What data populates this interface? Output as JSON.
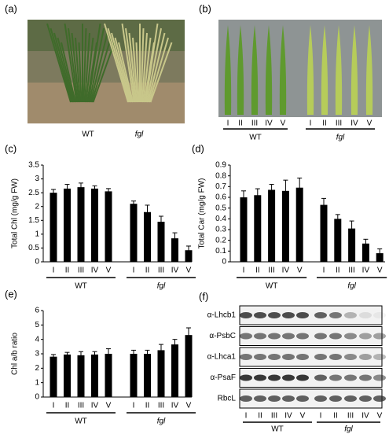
{
  "panels": {
    "a": {
      "label": "(a)",
      "captions": [
        "WT",
        "fgl"
      ]
    },
    "b": {
      "label": "(b)",
      "lanes": [
        "I",
        "II",
        "III",
        "IV",
        "V",
        "I",
        "II",
        "III",
        "IV",
        "V"
      ],
      "groups": [
        "WT",
        "fgl"
      ]
    },
    "f": {
      "label": "(f)",
      "rows": [
        "α-Lhcb1",
        "α-PsbC",
        "α-Lhca1",
        "α-PsaF",
        "RbcL"
      ],
      "lanes": [
        "I",
        "II",
        "III",
        "IV",
        "V",
        "I",
        "II",
        "III",
        "IV",
        "V"
      ],
      "groups": [
        "WT",
        "fgl"
      ]
    }
  },
  "chart_data": [
    {
      "type": "bar",
      "panel_label": "(c)",
      "ylabel": "Total Chl (mg/g FW)",
      "color": "#000000",
      "categories": [
        "I",
        "II",
        "III",
        "IV",
        "V"
      ],
      "groups": [
        {
          "name": "WT",
          "values": [
            2.5,
            2.65,
            2.7,
            2.65,
            2.55
          ],
          "errors": [
            0.12,
            0.15,
            0.15,
            0.1,
            0.1
          ]
        },
        {
          "name": "fgl",
          "values": [
            2.1,
            1.8,
            1.45,
            0.85,
            0.42
          ],
          "errors": [
            0.1,
            0.25,
            0.2,
            0.2,
            0.15
          ]
        }
      ],
      "ylim": [
        0,
        3.5
      ],
      "yticks": [
        0,
        0.5,
        1,
        1.5,
        2,
        2.5,
        3,
        3.5
      ]
    },
    {
      "type": "bar",
      "panel_label": "(d)",
      "ylabel": "Total Car (mg/g FW)",
      "color": "#000000",
      "categories": [
        "I",
        "II",
        "III",
        "IV",
        "V"
      ],
      "groups": [
        {
          "name": "WT",
          "values": [
            0.6,
            0.62,
            0.67,
            0.66,
            0.69
          ],
          "errors": [
            0.06,
            0.06,
            0.05,
            0.1,
            0.09
          ]
        },
        {
          "name": "fgl",
          "values": [
            0.53,
            0.4,
            0.31,
            0.17,
            0.08
          ],
          "errors": [
            0.06,
            0.04,
            0.07,
            0.04,
            0.04
          ]
        }
      ],
      "ylim": [
        0,
        0.9
      ],
      "yticks": [
        0,
        0.1,
        0.2,
        0.3,
        0.4,
        0.5,
        0.6,
        0.7,
        0.8,
        0.9
      ]
    },
    {
      "type": "bar",
      "panel_label": "(e)",
      "ylabel": "Chl a/b ratio",
      "color": "#000000",
      "categories": [
        "I",
        "II",
        "III",
        "IV",
        "V"
      ],
      "groups": [
        {
          "name": "WT",
          "values": [
            2.8,
            2.95,
            2.9,
            2.95,
            3.0
          ],
          "errors": [
            0.15,
            0.15,
            0.25,
            0.2,
            0.35
          ]
        },
        {
          "name": "fgl",
          "values": [
            3.0,
            3.0,
            3.25,
            3.65,
            4.3
          ],
          "errors": [
            0.25,
            0.25,
            0.4,
            0.35,
            0.5
          ]
        }
      ],
      "ylim": [
        0,
        6
      ],
      "yticks": [
        0,
        1,
        2,
        3,
        4,
        5,
        6
      ]
    }
  ]
}
